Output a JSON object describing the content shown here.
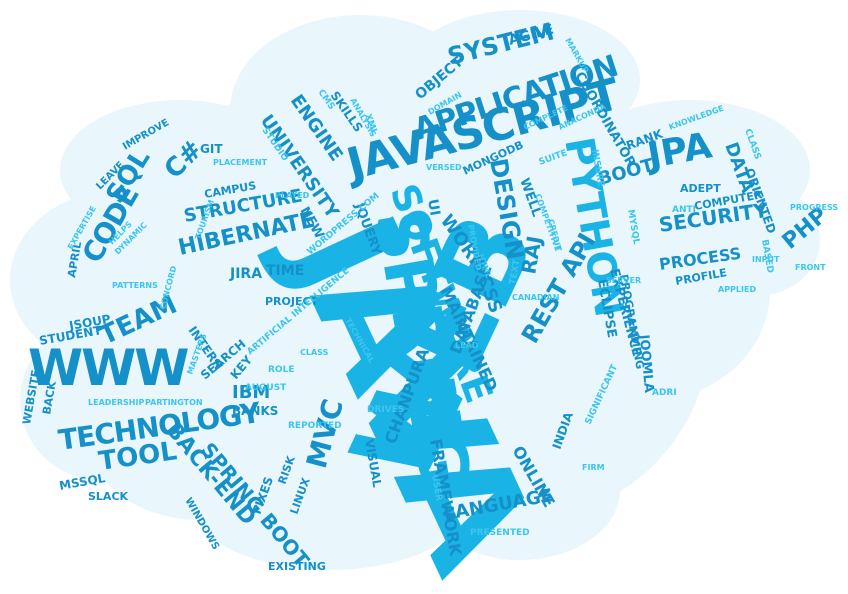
{
  "words": [
    {
      "text": "JAVA",
      "size": 9
    },
    {
      "text": "WEB",
      "size": 9
    },
    {
      "text": "SPRING",
      "size": 7
    },
    {
      "text": "JAVASCRIPT",
      "size": 7
    },
    {
      "text": "PYTHON",
      "size": 6
    },
    {
      "text": "SOFTWARE",
      "size": 6
    },
    {
      "text": "WWW",
      "size": 6
    },
    {
      "text": "TECHNOLOGY",
      "size": 5
    },
    {
      "text": "APPLICATION",
      "size": 5
    },
    {
      "text": "SYSTEM",
      "size": 5
    },
    {
      "text": "CODE",
      "size": 5
    },
    {
      "text": "SQL",
      "size": 5
    },
    {
      "text": "C#",
      "size": 5
    },
    {
      "text": "REST API",
      "size": 5
    },
    {
      "text": "HIBERNATE",
      "size": 5
    },
    {
      "text": "TEAM",
      "size": 5
    },
    {
      "text": "TOOL",
      "size": 5
    },
    {
      "text": "SECURITY",
      "size": 4
    },
    {
      "text": "JPA",
      "size": 5
    },
    {
      "text": "DESIGN",
      "size": 5
    },
    {
      "text": "MVC",
      "size": 5
    },
    {
      "text": "UNIVERSITY",
      "size": 4
    },
    {
      "text": "ENGINE",
      "size": 4
    },
    {
      "text": "BACK-END",
      "size": 4
    },
    {
      "text": "SPRING BOOT",
      "size": 4
    },
    {
      "text": "WORK",
      "size": 4
    },
    {
      "text": "CSS",
      "size": 4
    },
    {
      "text": "DATABASE",
      "size": 4
    },
    {
      "text": "MAINTAINED",
      "size": 4
    },
    {
      "text": "CHANPURA",
      "size": 4
    },
    {
      "text": "FRAMEWORK",
      "size": 4
    },
    {
      "text": "ONLINE",
      "size": 4
    },
    {
      "text": "LANGUAGE",
      "size": 4
    },
    {
      "text": "PROCESS",
      "size": 4
    },
    {
      "text": "STRUCTURE",
      "size": 4
    },
    {
      "text": "IBM",
      "size": 4
    },
    {
      "text": "RAJ",
      "size": 4
    },
    {
      "text": "PHP",
      "size": 4
    },
    {
      "text": "DATA",
      "size": 4
    },
    {
      "text": "BOOT",
      "size": 4
    },
    {
      "text": "EXPERIENCE",
      "size": 3
    },
    {
      "text": "ECLIPSE",
      "size": 3
    },
    {
      "text": "JOOMLA",
      "size": 3
    },
    {
      "text": "INDIA",
      "size": 3
    },
    {
      "text": "VISUAL",
      "size": 3
    },
    {
      "text": "PROGRAMMING",
      "size": 3
    },
    {
      "text": "AGILE",
      "size": 3
    },
    {
      "text": "OBJECT",
      "size": 3
    },
    {
      "text": "COORDINATOR",
      "size": 3
    },
    {
      "text": "SKILLS",
      "size": 3
    },
    {
      "text": "JIRA",
      "size": 3
    },
    {
      "text": "TIME",
      "size": 3
    },
    {
      "text": "NEW",
      "size": 3
    },
    {
      "text": "JQUERY",
      "size": 3
    },
    {
      "text": "UI",
      "size": 3
    },
    {
      "text": "MONGODB",
      "size": 3
    },
    {
      "text": "WELL",
      "size": 3
    },
    {
      "text": "ADEPT",
      "size": 3
    },
    {
      "text": "RANK",
      "size": 3
    },
    {
      "text": "ORIENTED",
      "size": 3
    },
    {
      "text": "PROFILE",
      "size": 3
    },
    {
      "text": "COMPUTER",
      "size": 3
    },
    {
      "text": "STUDENT",
      "size": 3
    },
    {
      "text": "JSOUP",
      "size": 3
    },
    {
      "text": "MSSQL",
      "size": 3
    },
    {
      "text": "SLACK",
      "size": 3
    },
    {
      "text": "PROJECT",
      "size": 3
    },
    {
      "text": "INTERN",
      "size": 3
    },
    {
      "text": "SEARCH",
      "size": 3
    },
    {
      "text": "KEY",
      "size": 3
    },
    {
      "text": "BANKS",
      "size": 3
    },
    {
      "text": "LINUX",
      "size": 3
    },
    {
      "text": "RISK",
      "size": 3
    },
    {
      "text": "FIXES",
      "size": 3
    },
    {
      "text": "EXISTING",
      "size": 3
    },
    {
      "text": "WINDOWS",
      "size": 3
    },
    {
      "text": "GIT",
      "size": 3
    },
    {
      "text": "CAMPUS",
      "size": 3
    },
    {
      "text": "LEAVE",
      "size": 3
    },
    {
      "text": "IMPROVE",
      "size": 3
    },
    {
      "text": "APRIL",
      "size": 3
    },
    {
      "text": "WEBSITE",
      "size": 3
    },
    {
      "text": "BACK",
      "size": 3
    },
    {
      "text": "ARTIFICIAL INTELLIGENCE",
      "size": 2
    },
    {
      "text": "WORDPRESS.COM",
      "size": 2
    },
    {
      "text": "ROLE",
      "size": 2
    },
    {
      "text": "AUGUST",
      "size": 2
    },
    {
      "text": "REPORTED",
      "size": 2
    },
    {
      "text": "DRIVES",
      "size": 2
    },
    {
      "text": "USER",
      "size": 2
    },
    {
      "text": "PRESENTED",
      "size": 2
    },
    {
      "text": "SUITE",
      "size": 2
    },
    {
      "text": "INSURE",
      "size": 2
    },
    {
      "text": "MYSQL",
      "size": 2
    },
    {
      "text": "ANTI",
      "size": 2
    },
    {
      "text": "BASED",
      "size": 2
    },
    {
      "text": "CLASS",
      "size": 2
    },
    {
      "text": "KNOWLEDGE",
      "size": 2
    },
    {
      "text": "XML",
      "size": 2
    },
    {
      "text": "CMS",
      "size": 2
    },
    {
      "text": "ANALYSIS",
      "size": 2
    },
    {
      "text": "STUDIO",
      "size": 2
    },
    {
      "text": "DOMAIN",
      "size": 2
    },
    {
      "text": "MARKUP",
      "size": 2
    },
    {
      "text": "ADRI",
      "size": 2
    },
    {
      "text": "SIGNIFICANT",
      "size": 2
    },
    {
      "text": "TEXT",
      "size": 2
    },
    {
      "text": "PLACEMENT",
      "size": 2
    },
    {
      "text": "PATTERNS",
      "size": 2
    },
    {
      "text": "LEADERSHIP",
      "size": 2
    },
    {
      "text": "PARTINGTON",
      "size": 2
    },
    {
      "text": "MASTERS",
      "size": 2
    },
    {
      "text": "DYNAMIC",
      "size": 2
    },
    {
      "text": "HELPS",
      "size": 2
    },
    {
      "text": "EXPERTISE",
      "size": 2
    },
    {
      "text": "VERSED",
      "size": 2
    },
    {
      "text": "PLAYED",
      "size": 2
    },
    {
      "text": "CONCORD",
      "size": 2
    },
    {
      "text": "TOURISM",
      "size": 2
    },
    {
      "text": "SERVER",
      "size": 2
    },
    {
      "text": "APPLIED",
      "size": 2
    },
    {
      "text": "CANADIAN",
      "size": 2
    },
    {
      "text": "FIRM",
      "size": 2
    },
    {
      "text": "PROGRESS",
      "size": 2
    },
    {
      "text": "PROVIDED",
      "size": 2
    },
    {
      "text": "TECHNICAL",
      "size": 2
    },
    {
      "text": "LEAD",
      "size": 2
    },
    {
      "text": "CLASS",
      "size": 2
    },
    {
      "text": "COMPLETE",
      "size": 2
    },
    {
      "text": "ANACONDA",
      "size": 2
    },
    {
      "text": "HTML",
      "size": 2
    },
    {
      "text": "COMPETITIVE",
      "size": 2
    },
    {
      "text": "CREDIT",
      "size": 2
    },
    {
      "text": "FRONT",
      "size": 2
    },
    {
      "text": "INPUT",
      "size": 2
    }
  ]
}
